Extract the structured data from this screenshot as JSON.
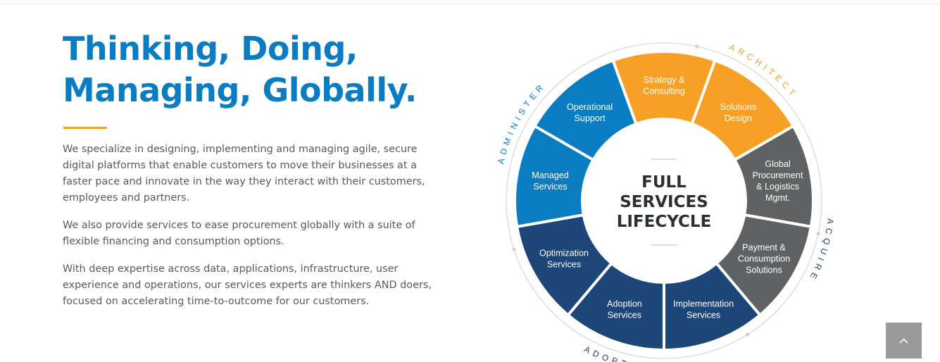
{
  "headline": {
    "line1": "Thinking, Doing,",
    "line2": "Managing, Globally."
  },
  "paragraphs": [
    "We specialize in designing, implementing and managing agile, secure digital platforms that enable customers to move their businesses at a faster pace and innovate in the way they interact with their customers, employees and partners.",
    "We also provide services to ease procurement globally with a suite of flexible financing and consumption options.",
    "With deep expertise across data, applications, infrastructure, user experience and operations, our services experts are thinkers AND doers, focused on accelerating time-to-outcome for our customers."
  ],
  "diagram": {
    "center_lines": [
      "FULL",
      "SERVICES",
      "LIFECYCLE"
    ],
    "phases": [
      "ARCHITECT",
      "ACQUIRE",
      "ADOPT",
      "ADMINISTER"
    ],
    "segments": [
      {
        "phase": "architect",
        "lines": [
          "Strategy &",
          "Consulting"
        ]
      },
      {
        "phase": "architect",
        "lines": [
          "Solutions",
          "Design"
        ]
      },
      {
        "phase": "acquire",
        "lines": [
          "Global",
          "Procurement",
          "& Logistics",
          "Mgmt."
        ]
      },
      {
        "phase": "acquire",
        "lines": [
          "Payment &",
          "Consumption",
          "Solutions"
        ]
      },
      {
        "phase": "adopt",
        "lines": [
          "Implementation",
          "Services"
        ]
      },
      {
        "phase": "adopt",
        "lines": [
          "Adoption",
          "Services"
        ]
      },
      {
        "phase": "adopt",
        "lines": [
          "Optimization",
          "Services"
        ]
      },
      {
        "phase": "administer",
        "lines": [
          "Managed",
          "Services"
        ]
      },
      {
        "phase": "administer",
        "lines": [
          "Operational",
          "Support"
        ]
      }
    ]
  },
  "colors": {
    "brand_blue": "#0a7cc1",
    "orange": "#f8a025",
    "gray": "#5f6163",
    "navy": "#1c4578",
    "blue": "#0a7cc1"
  },
  "scroll_top_icon": "chevron-up-icon"
}
